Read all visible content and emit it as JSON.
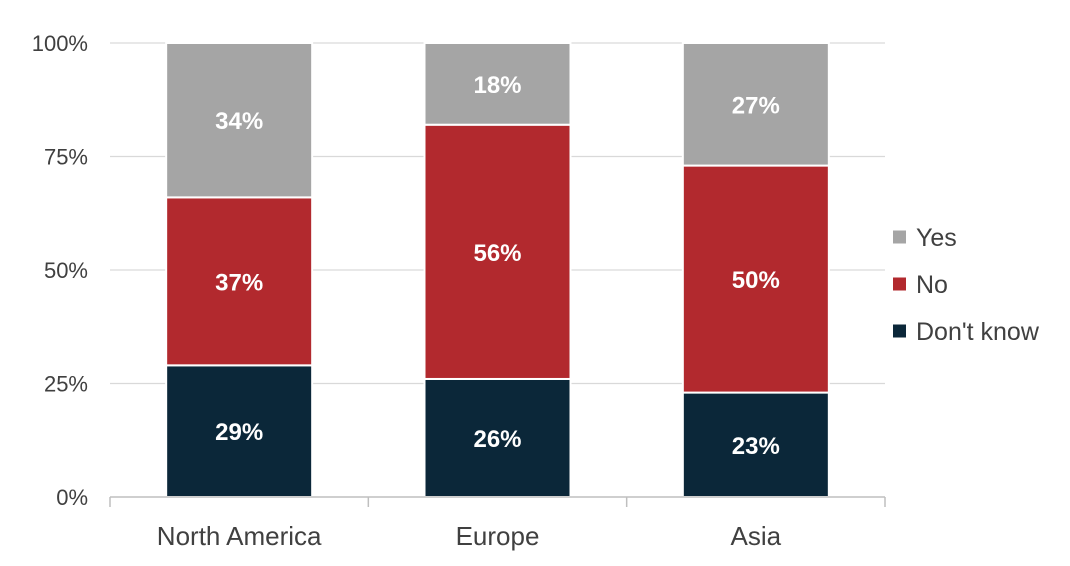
{
  "chart_data": {
    "type": "bar",
    "stacked": true,
    "title": "",
    "xlabel": "",
    "ylabel": "",
    "ylim": [
      0,
      100
    ],
    "y_ticks": [
      "0%",
      "25%",
      "50%",
      "75%",
      "100%"
    ],
    "y_tick_values": [
      0,
      25,
      50,
      75,
      100
    ],
    "categories": [
      "North America",
      "Europe",
      "Asia"
    ],
    "series": [
      {
        "name": "Don't know",
        "color": "#0b2739",
        "values": [
          29,
          26,
          23
        ],
        "labels": [
          "29%",
          "26%",
          "23%"
        ]
      },
      {
        "name": "No",
        "color": "#b2292e",
        "values": [
          37,
          56,
          50
        ],
        "labels": [
          "37%",
          "56%",
          "50%"
        ]
      },
      {
        "name": "Yes",
        "color": "#a5a5a5",
        "values": [
          34,
          18,
          27
        ],
        "labels": [
          "34%",
          "18%",
          "27%"
        ]
      }
    ],
    "legend": {
      "position": "right",
      "order": [
        "Yes",
        "No",
        "Don't know"
      ]
    },
    "grid": true
  }
}
